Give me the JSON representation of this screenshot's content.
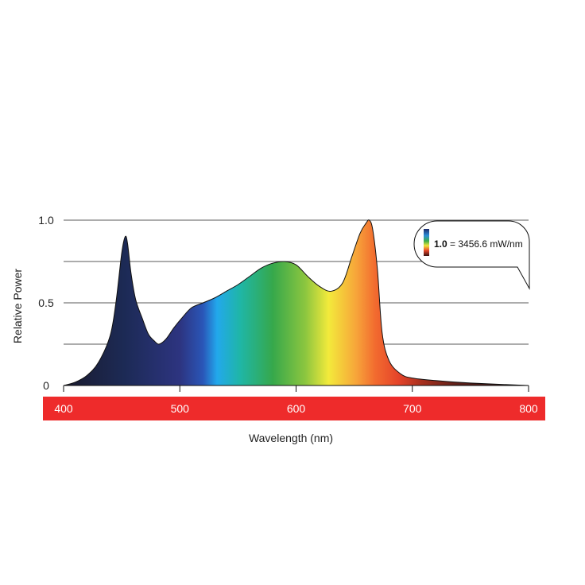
{
  "chart_data": {
    "type": "area",
    "title": "",
    "xlabel": "Wavelength (nm)",
    "ylabel": "Relative Power",
    "xlim": [
      400,
      800
    ],
    "ylim": [
      0,
      1
    ],
    "x_ticks": [
      "400",
      "500",
      "600",
      "700",
      "800"
    ],
    "y_ticks": [
      "0",
      "0.5",
      "1.0"
    ],
    "y_gridlines": [
      0.25,
      0.5,
      0.75,
      1.0
    ],
    "grid": true,
    "x_band_color": "#ee2b2b",
    "line_color": "#111111",
    "annotation": {
      "bold": "1.0",
      "text": " = 3456.6 mW/nm"
    },
    "series": [
      {
        "x": [
          400,
          410,
          420,
          430,
          440,
          445,
          450,
          453,
          455,
          458,
          462,
          468,
          473,
          478,
          482,
          488,
          495,
          502,
          510,
          520,
          530,
          540,
          550,
          560,
          570,
          580,
          590,
          600,
          610,
          620,
          630,
          640,
          648,
          655,
          660,
          663,
          666,
          670,
          674,
          680,
          690,
          700,
          720,
          750,
          800
        ],
        "y": [
          0.0,
          0.02,
          0.06,
          0.14,
          0.3,
          0.5,
          0.8,
          0.9,
          0.86,
          0.68,
          0.52,
          0.4,
          0.31,
          0.27,
          0.25,
          0.28,
          0.35,
          0.41,
          0.47,
          0.5,
          0.53,
          0.57,
          0.61,
          0.66,
          0.71,
          0.74,
          0.75,
          0.73,
          0.66,
          0.6,
          0.57,
          0.62,
          0.78,
          0.92,
          0.98,
          1.0,
          0.94,
          0.7,
          0.32,
          0.15,
          0.07,
          0.045,
          0.03,
          0.015,
          0.0
        ]
      }
    ]
  }
}
